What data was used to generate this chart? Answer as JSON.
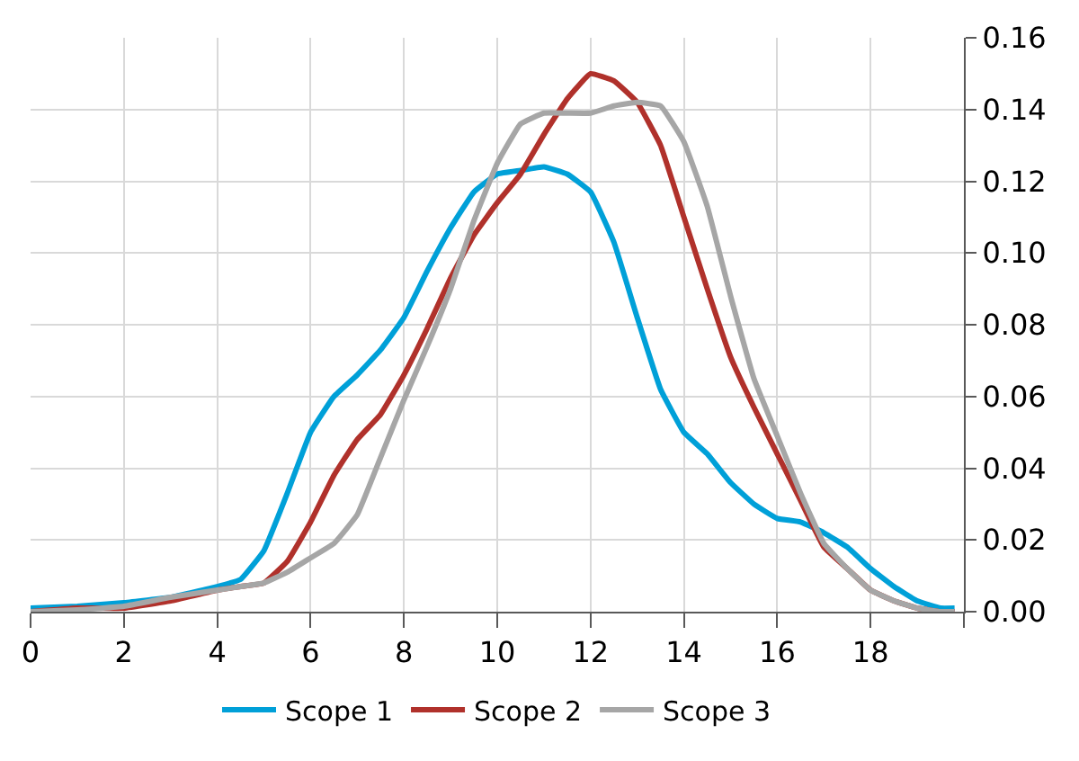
{
  "chart_data": {
    "type": "line",
    "xlim": [
      0,
      20
    ],
    "xticks": [
      0,
      2,
      4,
      6,
      8,
      10,
      12,
      14,
      16,
      18,
      {
        "value": 20,
        "label": null
      }
    ],
    "ylim": [
      0,
      0.16
    ],
    "yticks": [
      {
        "value": 0,
        "label": "0.00"
      },
      {
        "value": 0.02,
        "label": "0.02"
      },
      {
        "value": 0.04,
        "label": "0.04"
      },
      {
        "value": 0.06,
        "label": "0.06"
      },
      {
        "value": 0.08,
        "label": "0.08"
      },
      {
        "value": 0.1,
        "label": "0.10"
      },
      {
        "value": 0.12,
        "label": "0.12"
      },
      {
        "value": 0.14,
        "label": "0.14"
      },
      {
        "value": 0.16,
        "label": "0.16"
      }
    ],
    "grid": true,
    "legend": "bottom",
    "marker": "none",
    "line_style": "solid",
    "x": [
      0,
      1,
      2,
      3,
      4,
      4.5,
      5,
      5.5,
      6,
      6.5,
      7,
      7.5,
      8,
      8.5,
      9,
      9.5,
      10,
      10.5,
      11,
      11.5,
      12,
      12.5,
      13,
      13.5,
      14,
      14.5,
      15,
      15.5,
      16,
      16.5,
      17,
      17.5,
      18,
      18.5,
      19,
      19.5,
      19.8
    ],
    "series": [
      {
        "name": "Scope 1",
        "color": "#00a0d8",
        "values": [
          0.001,
          0.0015,
          0.0025,
          0.004,
          0.007,
          0.009,
          0.017,
          0.033,
          0.05,
          0.06,
          0.066,
          0.073,
          0.082,
          0.095,
          0.107,
          0.117,
          0.122,
          0.123,
          0.124,
          0.122,
          0.117,
          0.103,
          0.082,
          0.062,
          0.05,
          0.044,
          0.036,
          0.03,
          0.026,
          0.025,
          0.022,
          0.018,
          0.012,
          0.007,
          0.003,
          0.001,
          0.001
        ]
      },
      {
        "name": "Scope 2",
        "color": "#b0312b",
        "values": [
          0,
          0.001,
          0.001,
          0.003,
          0.006,
          0.007,
          0.008,
          0.014,
          0.025,
          0.038,
          0.048,
          0.055,
          0.066,
          0.079,
          0.093,
          0.105,
          0.114,
          0.122,
          0.133,
          0.143,
          0.15,
          0.148,
          0.142,
          0.13,
          0.11,
          0.09,
          0.071,
          0.057,
          0.044,
          0.031,
          0.018,
          0.012,
          0.006,
          0.003,
          0.001,
          0,
          0
        ]
      },
      {
        "name": "Scope 3",
        "color": "#a6a6a6",
        "values": [
          0,
          0.0005,
          0.0015,
          0.004,
          0.006,
          0.007,
          0.008,
          0.011,
          0.015,
          0.019,
          0.027,
          0.043,
          0.059,
          0.074,
          0.09,
          0.109,
          0.125,
          0.136,
          0.139,
          0.139,
          0.139,
          0.141,
          0.142,
          0.141,
          0.131,
          0.113,
          0.088,
          0.065,
          0.049,
          0.033,
          0.019,
          0.012,
          0.006,
          0.003,
          0.001,
          0,
          0
        ]
      }
    ]
  }
}
